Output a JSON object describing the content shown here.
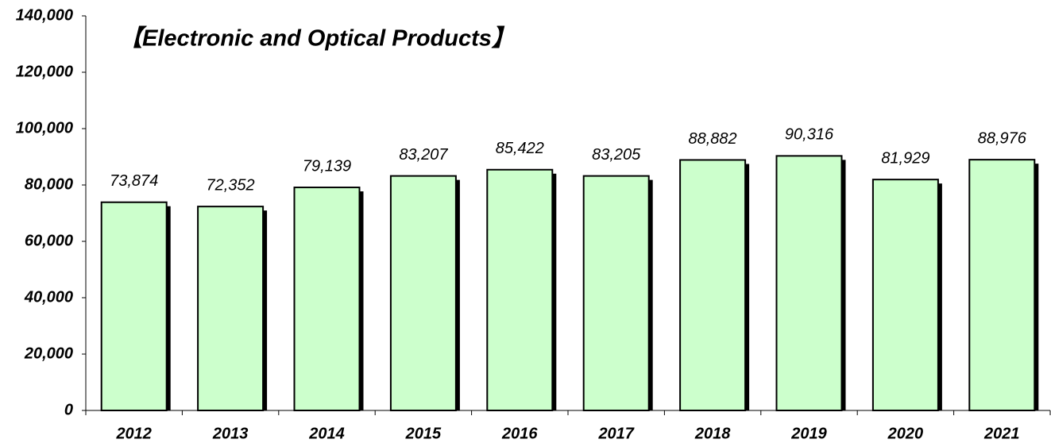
{
  "chart_data": {
    "type": "bar",
    "title": "【Electronic and Optical Products】",
    "categories": [
      "2012",
      "2013",
      "2014",
      "2015",
      "2016",
      "2017",
      "2018",
      "2019",
      "2020",
      "2021"
    ],
    "values": [
      73874,
      72352,
      79139,
      83207,
      85422,
      83205,
      88882,
      90316,
      81929,
      88976
    ],
    "value_labels": [
      "73,874",
      "72,352",
      "79,139",
      "83,207",
      "85,422",
      "83,205",
      "88,882",
      "90,316",
      "81,929",
      "88,976"
    ],
    "color": "#ccffcc",
    "ylim": [
      0,
      140000
    ],
    "yticks": [
      0,
      {
        "value": 20000,
        "label": "20,000"
      },
      {
        "value": 40000,
        "label": "40,000"
      },
      {
        "value": 60000,
        "label": "60,000"
      },
      {
        "value": 80000,
        "label": "80,000"
      },
      {
        "value": 100000,
        "label": "100,000"
      },
      {
        "value": 120000,
        "label": "120,000"
      },
      {
        "value": 140000,
        "label": "140,000"
      }
    ],
    "grid": false
  }
}
